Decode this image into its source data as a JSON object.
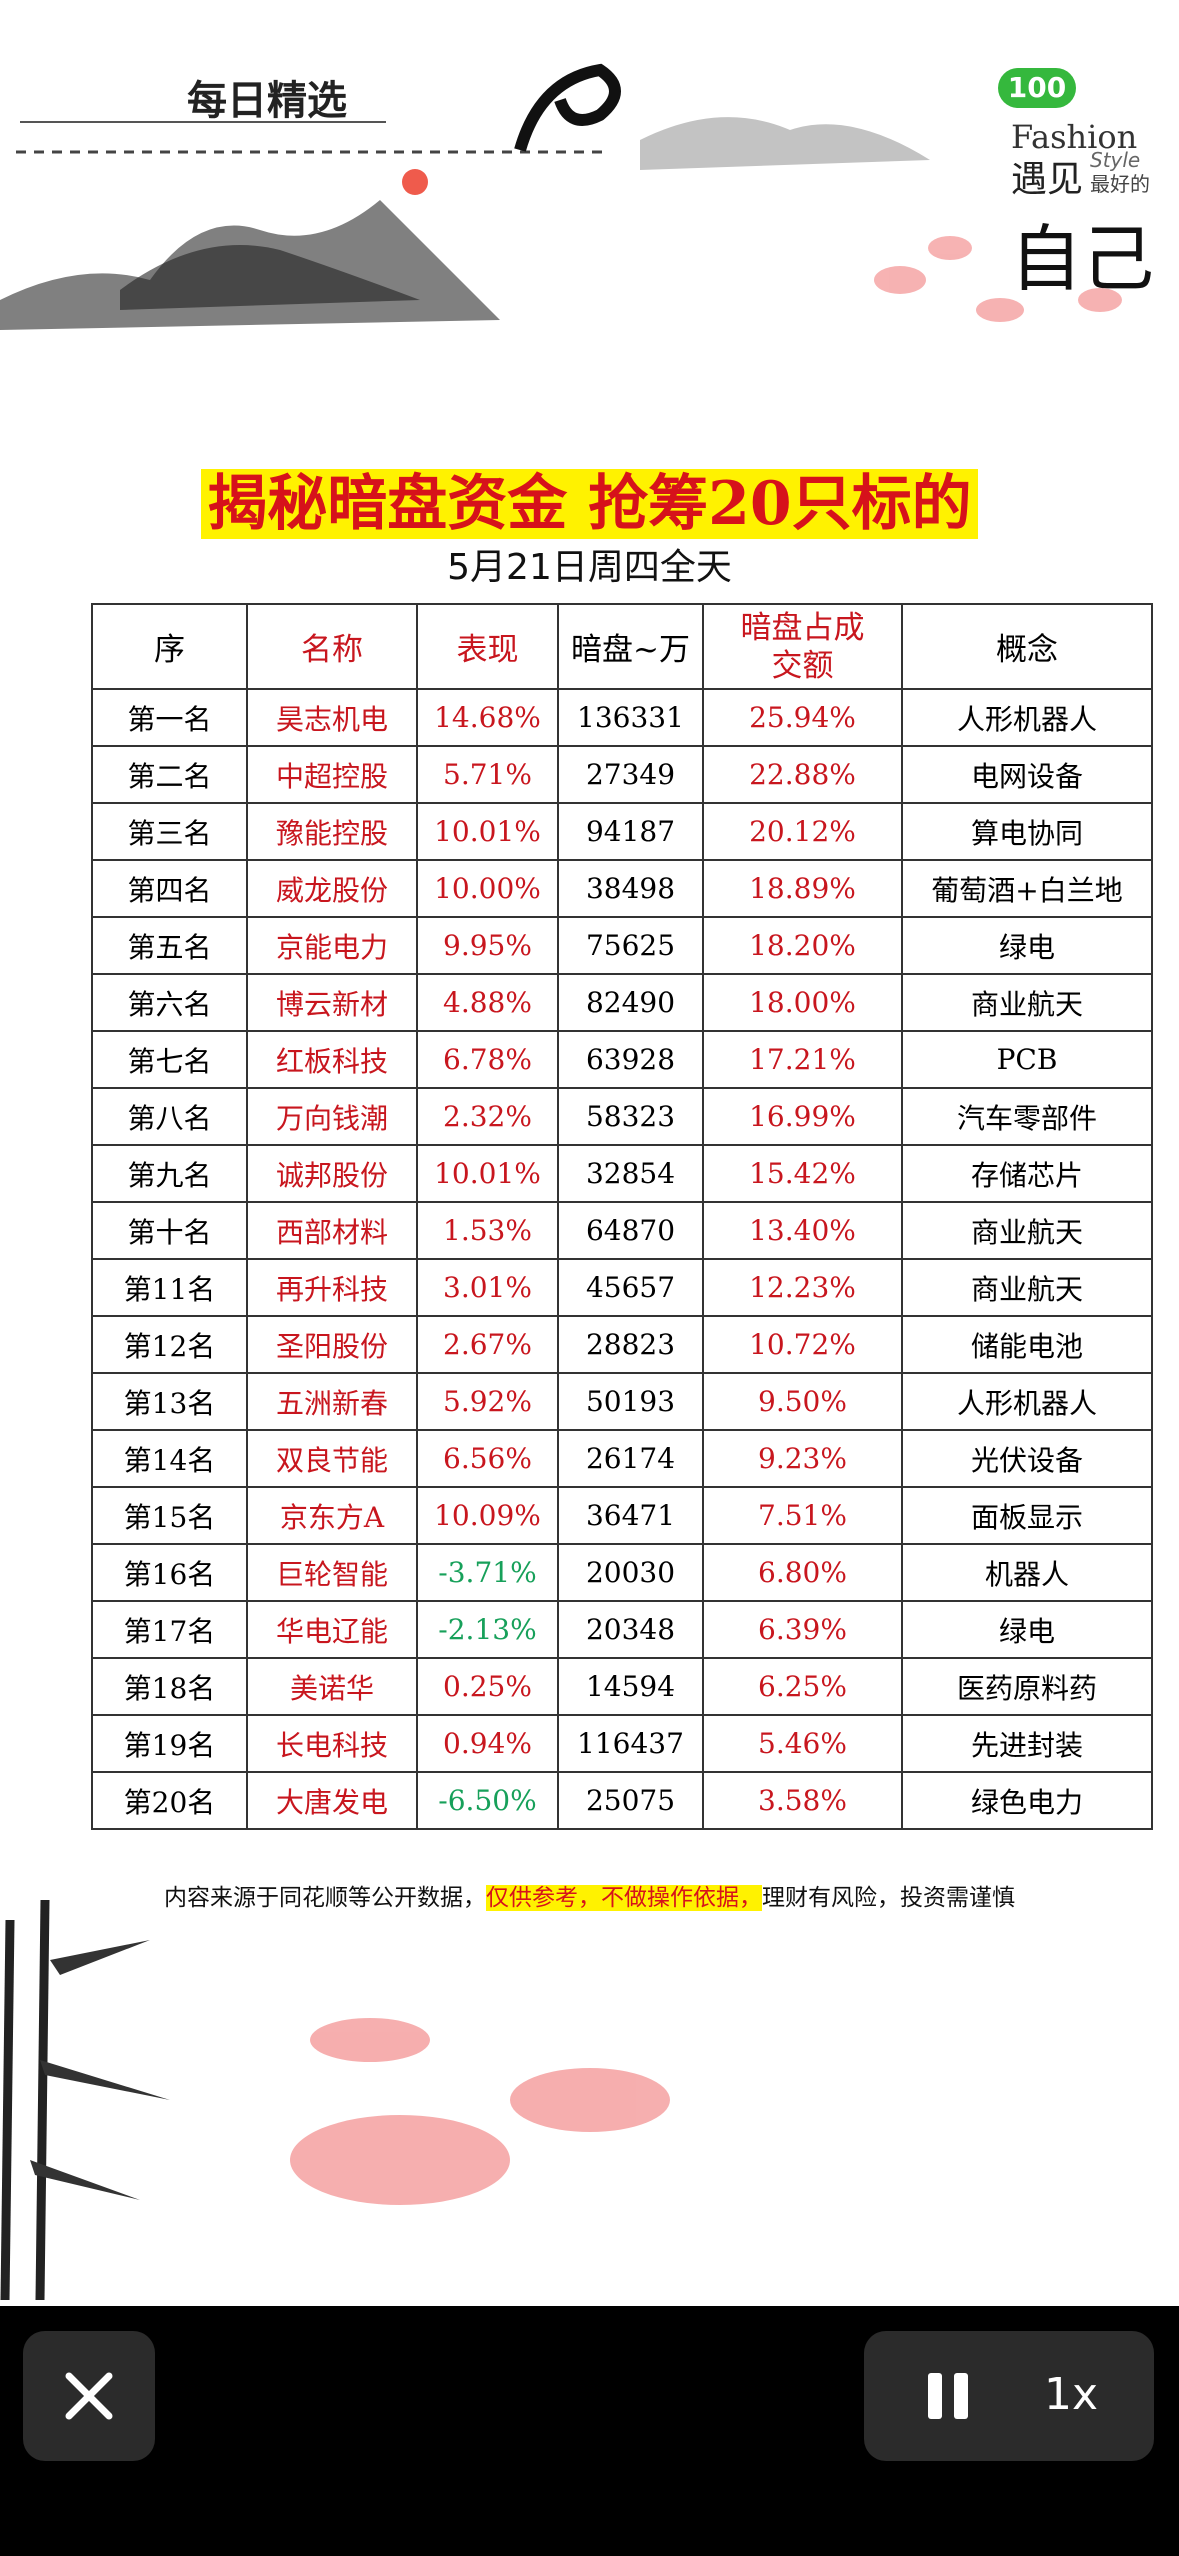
{
  "header": {
    "label": "每日精选",
    "badge": "100",
    "brand": "Fashion",
    "brand_cn": "遇见",
    "brand_style": "Style",
    "brand_sub": "最好的",
    "brand_big": "自己"
  },
  "title": "揭秘暗盘资金  抢筹20只标的",
  "subtitle": "5月21日周四全天",
  "table": {
    "header": [
      "序",
      "名称",
      "表现",
      "暗盘~万",
      "暗盘占成交额",
      "概念"
    ],
    "rows": [
      [
        "第一名",
        "昊志机电",
        "14.68%",
        "136331",
        "25.94%",
        "人形机器人"
      ],
      [
        "第二名",
        "中超控股",
        "5.71%",
        "27349",
        "22.88%",
        "电网设备"
      ],
      [
        "第三名",
        "豫能控股",
        "10.01%",
        "94187",
        "20.12%",
        "算电协同"
      ],
      [
        "第四名",
        "威龙股份",
        "10.00%",
        "38498",
        "18.89%",
        "葡萄酒+白兰地"
      ],
      [
        "第五名",
        "京能电力",
        "9.95%",
        "75625",
        "18.20%",
        "绿电"
      ],
      [
        "第六名",
        "博云新材",
        "4.88%",
        "82490",
        "18.00%",
        "商业航天"
      ],
      [
        "第七名",
        "红板科技",
        "6.78%",
        "63928",
        "17.21%",
        "PCB"
      ],
      [
        "第八名",
        "万向钱潮",
        "2.32%",
        "58323",
        "16.99%",
        "汽车零部件"
      ],
      [
        "第九名",
        "诚邦股份",
        "10.01%",
        "32854",
        "15.42%",
        "存储芯片"
      ],
      [
        "第十名",
        "西部材料",
        "1.53%",
        "64870",
        "13.40%",
        "商业航天"
      ],
      [
        "第11名",
        "再升科技",
        "3.01%",
        "45657",
        "12.23%",
        "商业航天"
      ],
      [
        "第12名",
        "圣阳股份",
        "2.67%",
        "28823",
        "10.72%",
        "储能电池"
      ],
      [
        "第13名",
        "五洲新春",
        "5.92%",
        "50193",
        "9.50%",
        "人形机器人"
      ],
      [
        "第14名",
        "双良节能",
        "6.56%",
        "26174",
        "9.23%",
        "光伏设备"
      ],
      [
        "第15名",
        "京东方A",
        "10.09%",
        "36471",
        "7.51%",
        "面板显示"
      ],
      [
        "第16名",
        "巨轮智能",
        "-3.71%",
        "20030",
        "6.80%",
        "机器人"
      ],
      [
        "第17名",
        "华电辽能",
        "-2.13%",
        "20348",
        "6.39%",
        "绿电"
      ],
      [
        "第18名",
        "美诺华",
        "0.25%",
        "14594",
        "6.25%",
        "医药原料药"
      ],
      [
        "第19名",
        "长电科技",
        "0.94%",
        "116437",
        "5.46%",
        "先进封装"
      ],
      [
        "第20名",
        "大唐发电",
        "-6.50%",
        "25075",
        "3.58%",
        "绿色电力"
      ]
    ]
  },
  "footer": {
    "before": "内容来源于同花顺等公开数据，",
    "highlight": "仅供参考，不做操作依据，",
    "after": "理财有风险，投资需谨慎"
  },
  "player": {
    "speed": "1x"
  }
}
